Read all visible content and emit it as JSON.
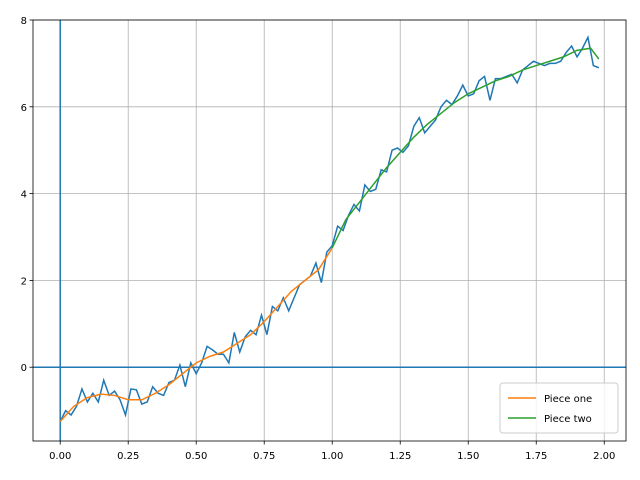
{
  "chart_data": {
    "type": "line",
    "xlim": [
      -0.1,
      2.08
    ],
    "ylim": [
      -1.7,
      8
    ],
    "xticks": [
      {
        "value": 0,
        "label": "0.00"
      },
      {
        "value": 0.25,
        "label": "0.25"
      },
      {
        "value": 0.5,
        "label": "0.50"
      },
      {
        "value": 0.75,
        "label": "0.75"
      },
      {
        "value": 1,
        "label": "1.00"
      },
      {
        "value": 1.25,
        "label": "1.25"
      },
      {
        "value": 1.5,
        "label": "1.50"
      },
      {
        "value": 1.75,
        "label": "1.75"
      },
      {
        "value": 2,
        "label": "2.00"
      }
    ],
    "yticks": [
      0,
      2,
      4,
      6,
      8
    ],
    "grid": true,
    "legend": "lower right",
    "reference_lines": {
      "x": 0,
      "y": 0,
      "color": "#1f77b4"
    },
    "series": [
      {
        "color": "#1f77b4",
        "x": [
          0,
          0.02,
          0.04,
          0.06,
          0.08,
          0.1,
          0.12,
          0.14,
          0.16,
          0.18,
          0.2,
          0.22,
          0.24,
          0.26,
          0.28,
          0.3,
          0.32,
          0.34,
          0.36,
          0.38,
          0.4,
          0.42,
          0.44,
          0.46,
          0.48,
          0.5,
          0.52,
          0.54,
          0.56,
          0.58,
          0.6,
          0.62,
          0.64,
          0.66,
          0.68,
          0.7,
          0.72,
          0.74,
          0.76,
          0.78,
          0.8,
          0.82,
          0.84,
          0.86,
          0.88,
          0.9,
          0.92,
          0.94,
          0.96,
          0.98,
          1,
          1.02,
          1.04,
          1.06,
          1.08,
          1.1,
          1.12,
          1.14,
          1.16,
          1.18,
          1.2,
          1.22,
          1.24,
          1.26,
          1.28,
          1.3,
          1.32,
          1.34,
          1.36,
          1.38,
          1.4,
          1.42,
          1.44,
          1.46,
          1.48,
          1.5,
          1.52,
          1.54,
          1.56,
          1.58,
          1.6,
          1.62,
          1.64,
          1.66,
          1.68,
          1.7,
          1.72,
          1.74,
          1.76,
          1.78,
          1.8,
          1.82,
          1.84,
          1.86,
          1.88,
          1.9,
          1.92,
          1.94,
          1.96,
          1.98
        ],
        "values": [
          -1.25,
          -1.0,
          -1.1,
          -0.9,
          -0.5,
          -0.8,
          -0.6,
          -0.8,
          -0.3,
          -0.65,
          -0.55,
          -0.75,
          -1.1,
          -0.5,
          -0.52,
          -0.85,
          -0.8,
          -0.45,
          -0.6,
          -0.65,
          -0.35,
          -0.3,
          0.05,
          -0.45,
          0.1,
          -0.15,
          0.1,
          0.48,
          0.4,
          0.3,
          0.3,
          0.1,
          0.8,
          0.35,
          0.7,
          0.85,
          0.75,
          1.2,
          0.75,
          1.4,
          1.3,
          1.6,
          1.3,
          1.6,
          1.9,
          2.0,
          2.1,
          2.4,
          1.95,
          2.65,
          2.8,
          3.25,
          3.15,
          3.5,
          3.75,
          3.6,
          4.2,
          4.05,
          4.1,
          4.55,
          4.5,
          5.0,
          5.05,
          4.95,
          5.1,
          5.55,
          5.75,
          5.4,
          5.55,
          5.7,
          6.0,
          6.15,
          6.05,
          6.25,
          6.5,
          6.25,
          6.3,
          6.6,
          6.7,
          6.15,
          6.65,
          6.65,
          6.7,
          6.75,
          6.55,
          6.85,
          6.95,
          7.05,
          7.0,
          6.95,
          7.0,
          7.0,
          7.05,
          7.25,
          7.4,
          7.15,
          7.35,
          7.6,
          6.95,
          6.9
        ]
      },
      {
        "name": "Piece one",
        "color": "#ff7f0e",
        "x": [
          0,
          0.05,
          0.1,
          0.15,
          0.2,
          0.25,
          0.3,
          0.35,
          0.4,
          0.45,
          0.5,
          0.55,
          0.6,
          0.65,
          0.7,
          0.75,
          0.8,
          0.85,
          0.9,
          0.95,
          1.0
        ],
        "values": [
          -1.25,
          -0.9,
          -0.7,
          -0.62,
          -0.65,
          -0.75,
          -0.75,
          -0.6,
          -0.4,
          -0.15,
          0.1,
          0.25,
          0.35,
          0.55,
          0.75,
          1.05,
          1.4,
          1.75,
          2.0,
          2.25,
          2.75
        ]
      },
      {
        "name": "Piece two",
        "color": "#2ca02c",
        "x": [
          1.0,
          1.05,
          1.1,
          1.15,
          1.2,
          1.25,
          1.3,
          1.35,
          1.4,
          1.45,
          1.5,
          1.55,
          1.6,
          1.65,
          1.7,
          1.75,
          1.8,
          1.85,
          1.9,
          1.95,
          1.98
        ],
        "values": [
          2.75,
          3.4,
          3.8,
          4.2,
          4.6,
          4.95,
          5.3,
          5.6,
          5.85,
          6.1,
          6.3,
          6.45,
          6.6,
          6.7,
          6.85,
          6.95,
          7.05,
          7.15,
          7.3,
          7.35,
          7.1
        ]
      }
    ]
  }
}
